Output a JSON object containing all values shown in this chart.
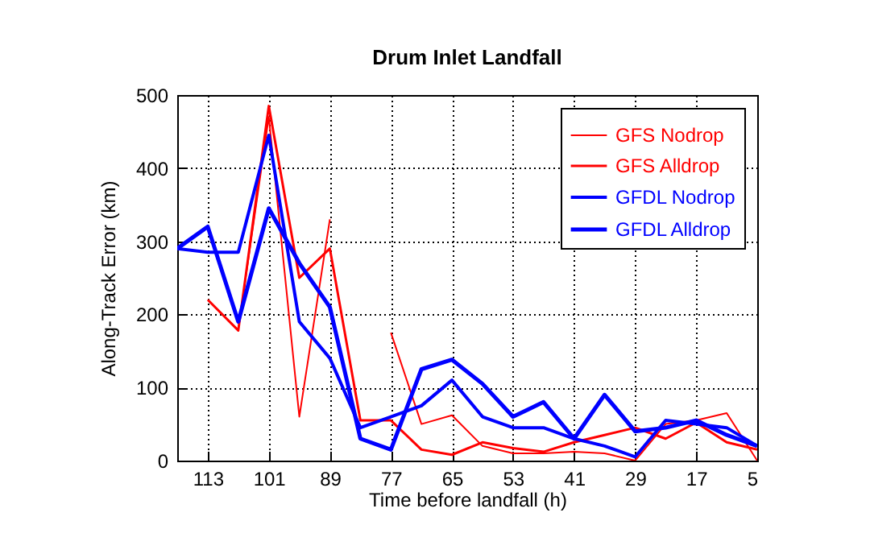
{
  "chart_data": {
    "type": "line",
    "title": "Drum Inlet Landfall",
    "xlabel": "Time before landfall (h)",
    "ylabel": "Along-Track Error (km)",
    "x": [
      119,
      113,
      107,
      101,
      95,
      89,
      83,
      77,
      71,
      65,
      59,
      53,
      47,
      41,
      35,
      29,
      23,
      17,
      11,
      5
    ],
    "xlim": [
      119,
      5
    ],
    "xticks": [
      113,
      101,
      89,
      77,
      65,
      53,
      41,
      29,
      17,
      5
    ],
    "ylim": [
      0,
      500
    ],
    "yticks": [
      0,
      100,
      200,
      300,
      400,
      500
    ],
    "grid": true,
    "legend": "top right",
    "line_style": "solid",
    "series": [
      {
        "name": "GFS Nodrop",
        "color": "#ff0000",
        "values": [
          null,
          null,
          180,
          470,
          60,
          330,
          null,
          175,
          50,
          62,
          20,
          10,
          10,
          12,
          10,
          0,
          50,
          55,
          65,
          0
        ]
      },
      {
        "name": "GFS Alldrop",
        "color": "#ff0000",
        "values": [
          null,
          220,
          178,
          485,
          250,
          290,
          55,
          55,
          15,
          8,
          25,
          17,
          12,
          25,
          35,
          45,
          30,
          52,
          25,
          15
        ]
      },
      {
        "name": "GFDL Nodrop",
        "color": "#0000ff",
        "values": [
          290,
          285,
          285,
          445,
          190,
          140,
          45,
          60,
          75,
          110,
          60,
          45,
          45,
          30,
          20,
          5,
          55,
          50,
          45,
          20
        ]
      },
      {
        "name": "GFDL Alldrop",
        "color": "#0000ff",
        "values": [
          290,
          320,
          190,
          345,
          270,
          210,
          30,
          15,
          125,
          138,
          105,
          60,
          80,
          30,
          90,
          40,
          45,
          55,
          35,
          20
        ]
      }
    ]
  }
}
